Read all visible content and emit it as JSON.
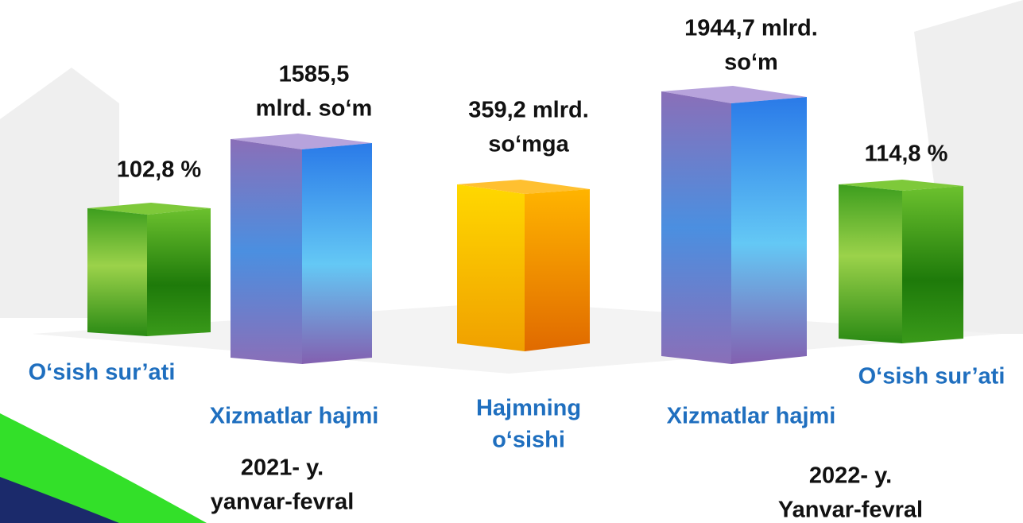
{
  "items": [
    {
      "value_label": [
        "102,8 %"
      ],
      "label": [
        "O‘sish sur’ati"
      ]
    },
    {
      "value_label": [
        "1585,5",
        "mlrd. so‘m"
      ],
      "label": [
        "Xizmatlar hajmi"
      ]
    },
    {
      "value_label": [
        "359,2 mlrd.",
        "so‘mga"
      ],
      "label": [
        "Hajmning",
        "o‘sishi"
      ]
    },
    {
      "value_label": [
        "1944,7 mlrd.",
        "so‘m"
      ],
      "label": [
        "Xizmatlar hajmi"
      ]
    },
    {
      "value_label": [
        "114,8 %"
      ],
      "label": [
        "O‘sish sur’ati"
      ]
    }
  ],
  "periods": [
    {
      "lines": [
        "2021- y.",
        "yanvar-fevral"
      ]
    },
    {
      "lines": [
        "2022- y.",
        "Yanvar-fevral"
      ]
    }
  ]
}
